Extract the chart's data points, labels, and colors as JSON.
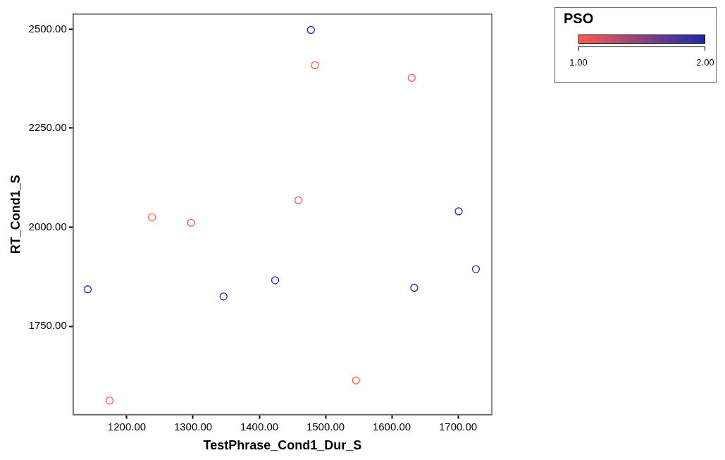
{
  "chart_data": {
    "type": "scatter",
    "xlabel": "TestPhrase_Cond1_Dur_S",
    "ylabel": "RT_Cond1_S",
    "clabel": "PSO",
    "marker": "circle",
    "grid": false,
    "xlim": [
      1119,
      1751
    ],
    "ylim": [
      1527,
      2538
    ],
    "xticks": [
      {
        "value": 1200,
        "label": "1200.00"
      },
      {
        "value": 1300,
        "label": "1300.00"
      },
      {
        "value": 1400,
        "label": "1400.00"
      },
      {
        "value": 1500,
        "label": "1500.00"
      },
      {
        "value": 1600,
        "label": "1600.00"
      },
      {
        "value": 1700,
        "label": "1700.00"
      }
    ],
    "yticks": [
      {
        "value": 1750,
        "label": "1750.00"
      },
      {
        "value": 2000,
        "label": "2000.00"
      },
      {
        "value": 2250,
        "label": "2250.00"
      },
      {
        "value": 2500,
        "label": "2500.00"
      }
    ],
    "clim": [
      1,
      2
    ],
    "cticks": [
      {
        "value": 1,
        "label": "1.00"
      },
      {
        "value": 2,
        "label": "2.00"
      }
    ],
    "x": [
      1141,
      1174,
      1238,
      1297,
      1346,
      1424,
      1459,
      1478,
      1484,
      1546,
      1630,
      1634,
      1701,
      1727
    ],
    "values": [
      1843,
      1562,
      2025,
      2011,
      1825,
      1866,
      2068,
      2498,
      2409,
      1613,
      2377,
      1847,
      2040,
      1894
    ],
    "cvalues": [
      2,
      1,
      1,
      1,
      2,
      2,
      1,
      2,
      1,
      1,
      1,
      2,
      2,
      2
    ],
    "colors": [
      "#1a2ab0",
      "#ff5a4e",
      "#ff5a4e",
      "#ff5a4e",
      "#1a2ab0",
      "#1a2ab0",
      "#ff5a4e",
      "#1a2ab0",
      "#ff5a4e",
      "#ff5a4e",
      "#ff5a4e",
      "#1a2ab0",
      "#1a2ab0",
      "#1a2ab0"
    ]
  }
}
